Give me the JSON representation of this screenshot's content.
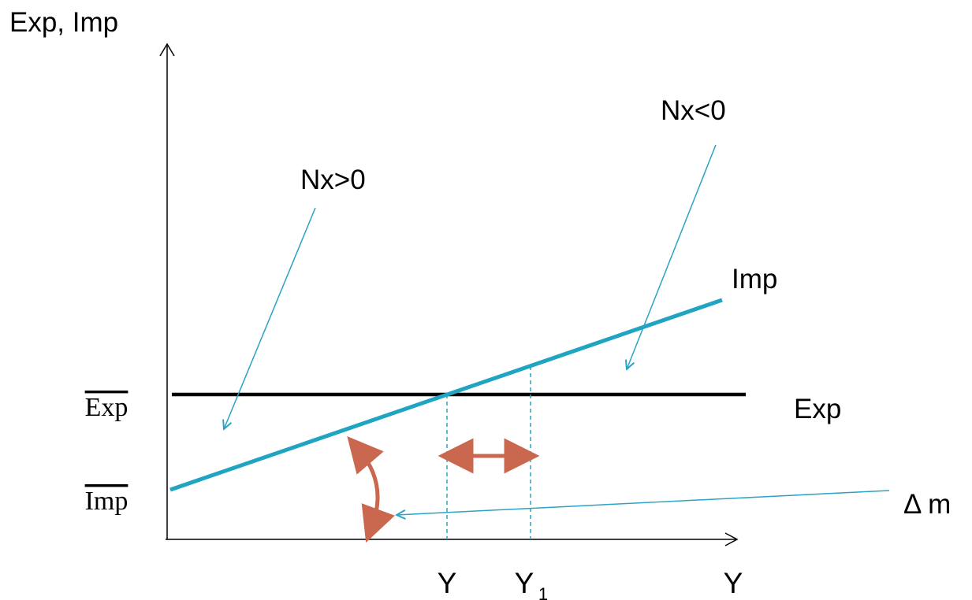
{
  "labels": {
    "y_axis": "Exp, Imp",
    "x_axis": "Y",
    "exp_bar": "Exp",
    "imp_bar": "Imp",
    "exp_line": "Exp",
    "imp_line": "Imp",
    "nx_positive": "Nx>0",
    "nx_negative": "Nx<0",
    "y_equilibrium": "Y",
    "y1_main": "Y",
    "y1_sub": "1",
    "delta_m": "Δ m"
  },
  "colors": {
    "imp_line": "#1fa5c2",
    "exp_line": "#000000",
    "annotation_arrow": "#2aa3c4",
    "shift_arrow": "#c9684e",
    "axes": "#000000"
  }
}
